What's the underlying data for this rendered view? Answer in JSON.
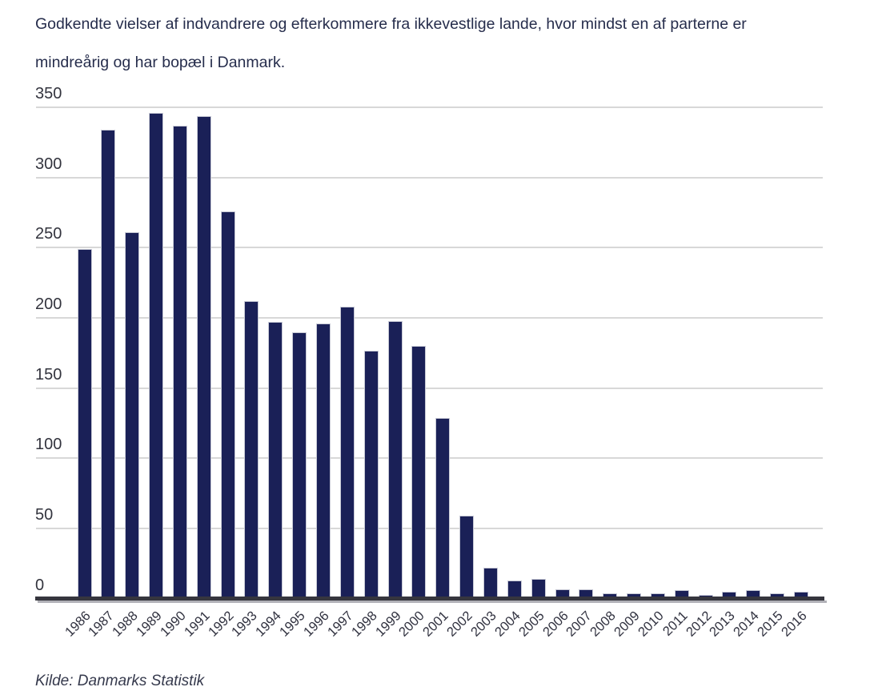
{
  "title": {
    "line1": "Godkendte vielser af indvandrere og efterkommere fra ikkevestlige lande, hvor mindst en af parterne er",
    "line2": "mindreårig og har bopæl i Danmark."
  },
  "source": "Kilde: Danmarks Statistik",
  "colors": {
    "bar": "#1a2057",
    "bar_edge": "#c7c9d5",
    "gridline": "#d8d8d8",
    "axis": "#36363e",
    "title_text": "#262d4c",
    "tick_text": "#33343e"
  },
  "chart_data": {
    "type": "bar",
    "title": "Godkendte vielser af indvandrere og efterkommere fra ikkevestlige lande, hvor mindst en af parterne er mindreårig og har bopæl i Danmark.",
    "source": "Kilde: Danmarks Statistik",
    "xlabel": "",
    "ylabel": "",
    "ylim": [
      0,
      350
    ],
    "ytick_step": 50,
    "yticks": [
      0,
      50,
      100,
      150,
      200,
      250,
      300,
      350
    ],
    "grid": true,
    "legend": "none",
    "categories": [
      "1986",
      "1987",
      "1988",
      "1989",
      "1990",
      "1991",
      "1992",
      "1993",
      "1994",
      "1995",
      "1996",
      "1997",
      "1998",
      "1999",
      "2000",
      "2001",
      "2002",
      "2003",
      "2004",
      "2005",
      "2006",
      "2007",
      "2008",
      "2009",
      "2010",
      "2011",
      "2012",
      "2013",
      "2014",
      "2015",
      "2016"
    ],
    "values": [
      248,
      333,
      260,
      345,
      336,
      343,
      275,
      211,
      196,
      189,
      195,
      207,
      176,
      197,
      179,
      128,
      58,
      21,
      12,
      13,
      6,
      6,
      3,
      3,
      3,
      5,
      2,
      4,
      5,
      3,
      4
    ]
  }
}
